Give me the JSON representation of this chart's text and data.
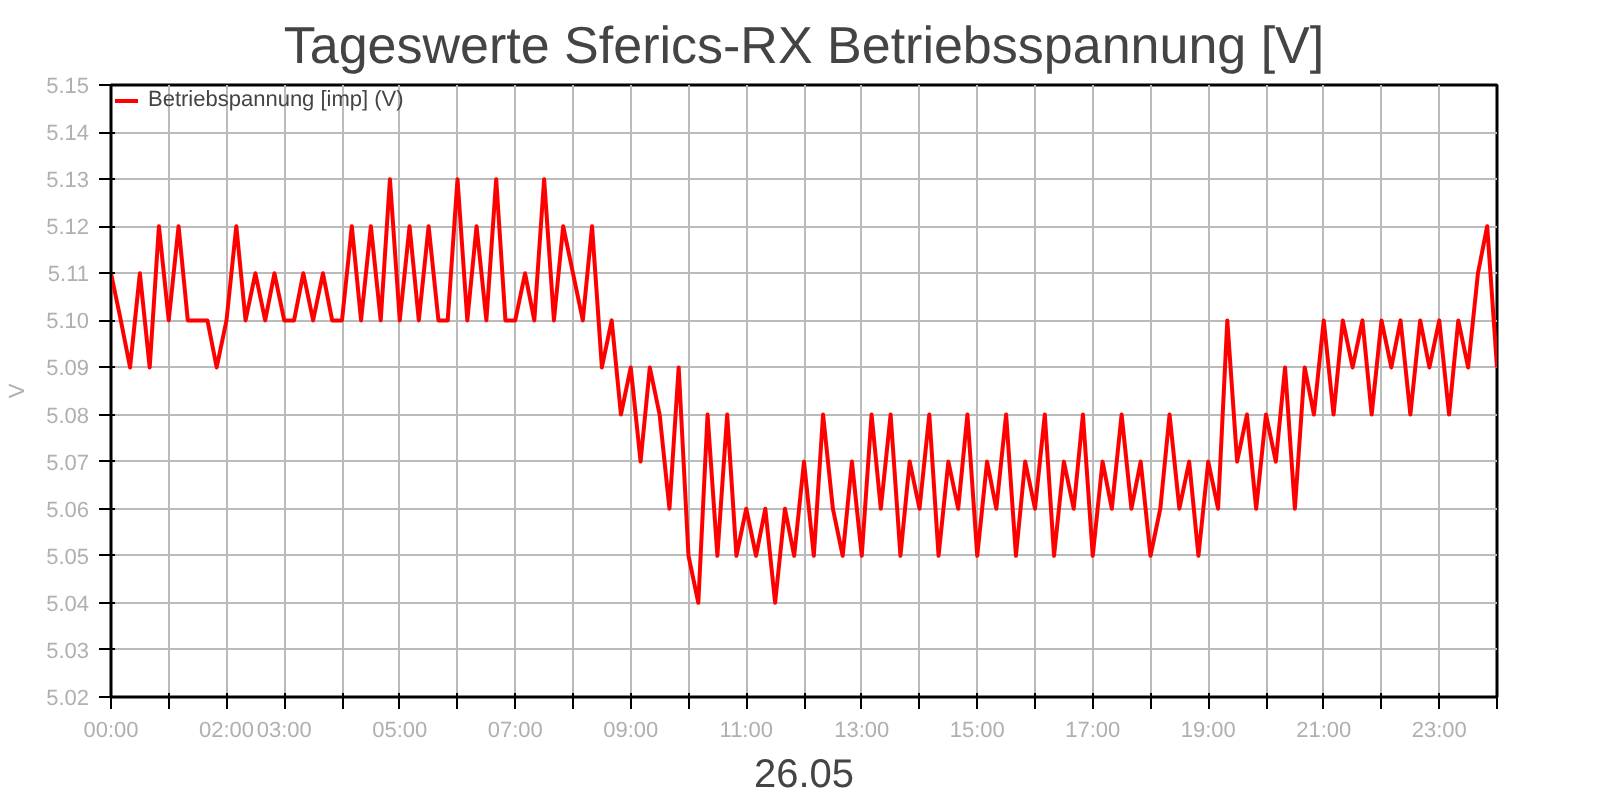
{
  "chart_data": {
    "type": "line",
    "title": "Tageswerte Sferics-RX Betriebsspannung [V]",
    "xlabel": "26.05",
    "ylabel": "V",
    "x": [
      0,
      0.17,
      0.33,
      0.5,
      0.67,
      0.83,
      1,
      1.17,
      1.33,
      1.5,
      1.67,
      1.83,
      2,
      2.17,
      2.33,
      2.5,
      2.67,
      2.83,
      3,
      3.17,
      3.33,
      3.5,
      3.67,
      3.83,
      4,
      4.17,
      4.33,
      4.5,
      4.67,
      4.83,
      5,
      5.17,
      5.33,
      5.5,
      5.67,
      5.83,
      6,
      6.17,
      6.33,
      6.5,
      6.67,
      6.83,
      7,
      7.17,
      7.33,
      7.5,
      7.67,
      7.83,
      8,
      8.17,
      8.33,
      8.5,
      8.67,
      8.83,
      9,
      9.17,
      9.33,
      9.5,
      9.67,
      9.83,
      10,
      10.17,
      10.33,
      10.5,
      10.67,
      10.83,
      11,
      11.17,
      11.33,
      11.5,
      11.67,
      11.83,
      12,
      12.17,
      12.33,
      12.5,
      12.67,
      12.83,
      13,
      13.17,
      13.33,
      13.5,
      13.67,
      13.83,
      14,
      14.17,
      14.33,
      14.5,
      14.67,
      14.83,
      15,
      15.17,
      15.33,
      15.5,
      15.67,
      15.83,
      16,
      16.17,
      16.33,
      16.5,
      16.67,
      16.83,
      17,
      17.17,
      17.33,
      17.5,
      17.67,
      17.83,
      18,
      18.17,
      18.33,
      18.5,
      18.67,
      18.83,
      19,
      19.17,
      19.33,
      19.5,
      19.67,
      19.83,
      20,
      20.17,
      20.33,
      20.5,
      20.67,
      20.83,
      21,
      21.17,
      21.33,
      21.5,
      21.67,
      21.83,
      22,
      22.17,
      22.33,
      22.5,
      22.67,
      22.83,
      23,
      23.17,
      23.33,
      23.5,
      23.67,
      23.83,
      24
    ],
    "series": [
      {
        "name": "Betriebspannung [imp] (V)",
        "color": "#ff0000",
        "values": [
          5.11,
          5.1,
          5.09,
          5.11,
          5.09,
          5.12,
          5.1,
          5.12,
          5.1,
          5.1,
          5.1,
          5.09,
          5.1,
          5.12,
          5.1,
          5.11,
          5.1,
          5.11,
          5.1,
          5.1,
          5.11,
          5.1,
          5.11,
          5.1,
          5.1,
          5.12,
          5.1,
          5.12,
          5.1,
          5.13,
          5.1,
          5.12,
          5.1,
          5.12,
          5.1,
          5.1,
          5.13,
          5.1,
          5.12,
          5.1,
          5.13,
          5.1,
          5.1,
          5.11,
          5.1,
          5.13,
          5.1,
          5.12,
          5.11,
          5.1,
          5.12,
          5.09,
          5.1,
          5.08,
          5.09,
          5.07,
          5.09,
          5.08,
          5.06,
          5.09,
          5.05,
          5.04,
          5.08,
          5.05,
          5.08,
          5.05,
          5.06,
          5.05,
          5.06,
          5.04,
          5.06,
          5.05,
          5.07,
          5.05,
          5.08,
          5.06,
          5.05,
          5.07,
          5.05,
          5.08,
          5.06,
          5.08,
          5.05,
          5.07,
          5.06,
          5.08,
          5.05,
          5.07,
          5.06,
          5.08,
          5.05,
          5.07,
          5.06,
          5.08,
          5.05,
          5.07,
          5.06,
          5.08,
          5.05,
          5.07,
          5.06,
          5.08,
          5.05,
          5.07,
          5.06,
          5.08,
          5.06,
          5.07,
          5.05,
          5.06,
          5.08,
          5.06,
          5.07,
          5.05,
          5.07,
          5.06,
          5.1,
          5.07,
          5.08,
          5.06,
          5.08,
          5.07,
          5.09,
          5.06,
          5.09,
          5.08,
          5.1,
          5.08,
          5.1,
          5.09,
          5.1,
          5.08,
          5.1,
          5.09,
          5.1,
          5.08,
          5.1,
          5.09,
          5.1,
          5.08,
          5.1,
          5.09,
          5.11,
          5.12,
          5.09
        ]
      }
    ],
    "xlim": [
      0,
      24
    ],
    "xticks": [
      {
        "value": 0,
        "label": "00:00"
      },
      {
        "value": 1,
        "label": null
      },
      {
        "value": 2,
        "label": "02:00"
      },
      {
        "value": 3,
        "label": "03:00"
      },
      {
        "value": 4,
        "label": null
      },
      {
        "value": 5,
        "label": "05:00"
      },
      {
        "value": 6,
        "label": null
      },
      {
        "value": 7,
        "label": "07:00"
      },
      {
        "value": 8,
        "label": null
      },
      {
        "value": 9,
        "label": "09:00"
      },
      {
        "value": 10,
        "label": null
      },
      {
        "value": 11,
        "label": "11:00"
      },
      {
        "value": 12,
        "label": null
      },
      {
        "value": 13,
        "label": "13:00"
      },
      {
        "value": 14,
        "label": null
      },
      {
        "value": 15,
        "label": "15:00"
      },
      {
        "value": 16,
        "label": null
      },
      {
        "value": 17,
        "label": "17:00"
      },
      {
        "value": 18,
        "label": null
      },
      {
        "value": 19,
        "label": "19:00"
      },
      {
        "value": 20,
        "label": null
      },
      {
        "value": 21,
        "label": "21:00"
      },
      {
        "value": 22,
        "label": null
      },
      {
        "value": 23,
        "label": "23:00"
      },
      {
        "value": 24,
        "label": null
      }
    ],
    "ylim": [
      5.02,
      5.15
    ],
    "yticks": [
      5.02,
      5.03,
      5.04,
      5.05,
      5.06,
      5.07,
      5.08,
      5.09,
      {
        "value": 5.1,
        "label": "5.10"
      },
      5.11,
      5.12,
      5.13,
      5.14,
      5.15
    ],
    "grid": true,
    "legend": "top left",
    "marker": "none",
    "line_style": "solid"
  }
}
